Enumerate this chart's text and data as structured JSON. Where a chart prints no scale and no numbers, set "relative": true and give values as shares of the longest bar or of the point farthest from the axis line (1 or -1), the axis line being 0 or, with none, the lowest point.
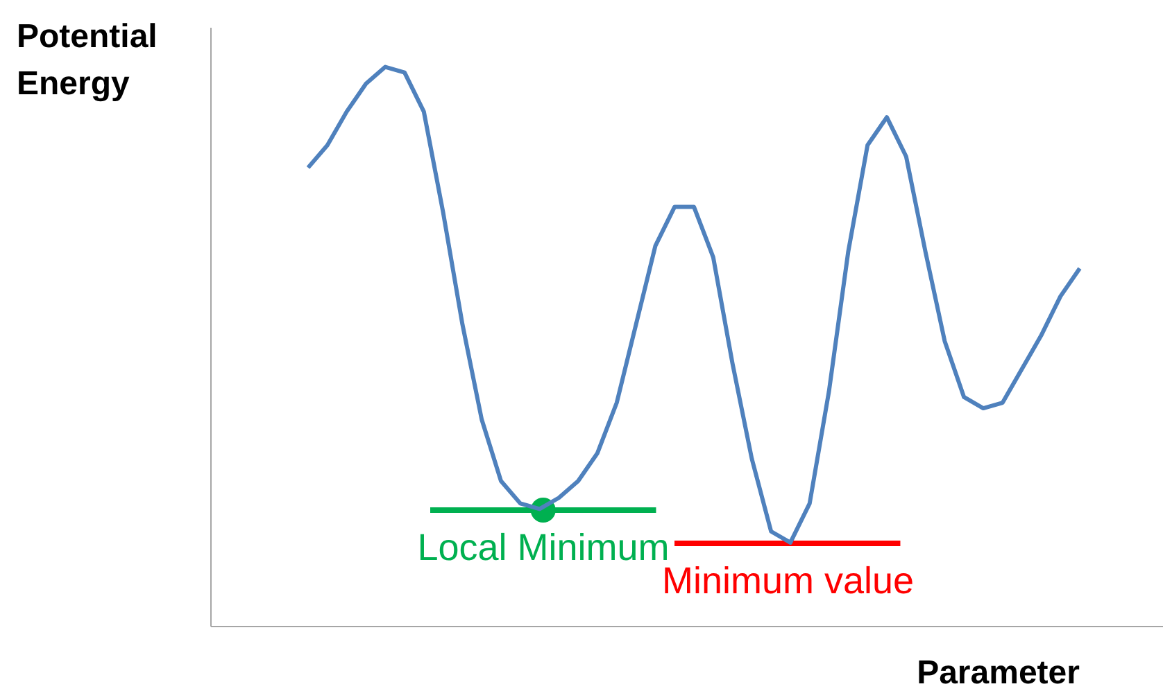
{
  "chart_data": {
    "type": "line",
    "relative": true,
    "xlabel": "Parameter",
    "ylabel": "Potential Energy",
    "categories": [
      null,
      null,
      null,
      null,
      null,
      null,
      null,
      null,
      null,
      null,
      null,
      null,
      null,
      null,
      null,
      null,
      null,
      null,
      null,
      null,
      null,
      null,
      null,
      null,
      null,
      null,
      null,
      null,
      null,
      null,
      null,
      null,
      null,
      null,
      null,
      null,
      null,
      null,
      null,
      null,
      null
    ],
    "series": [
      {
        "color": "#4f81bd",
        "values": [
          0.82,
          0.86,
          0.92,
          0.97,
          1.0,
          0.99,
          0.92,
          0.74,
          0.54,
          0.37,
          0.26,
          0.22,
          0.21,
          0.23,
          0.26,
          0.31,
          0.4,
          0.54,
          0.68,
          0.75,
          0.75,
          0.66,
          0.47,
          0.3,
          0.17,
          0.15,
          0.22,
          0.42,
          0.67,
          0.86,
          0.91,
          0.84,
          0.67,
          0.51,
          0.41,
          0.39,
          0.4,
          0.46,
          0.52,
          0.59,
          0.64
        ]
      }
    ],
    "ref_lines": [
      {
        "axis": "y",
        "value": 0.21,
        "label": "Local Minimum",
        "color": "#00b050"
      },
      {
        "axis": "y",
        "value": 0.15,
        "label": "Minimum value",
        "color": "#ff0000"
      }
    ]
  }
}
